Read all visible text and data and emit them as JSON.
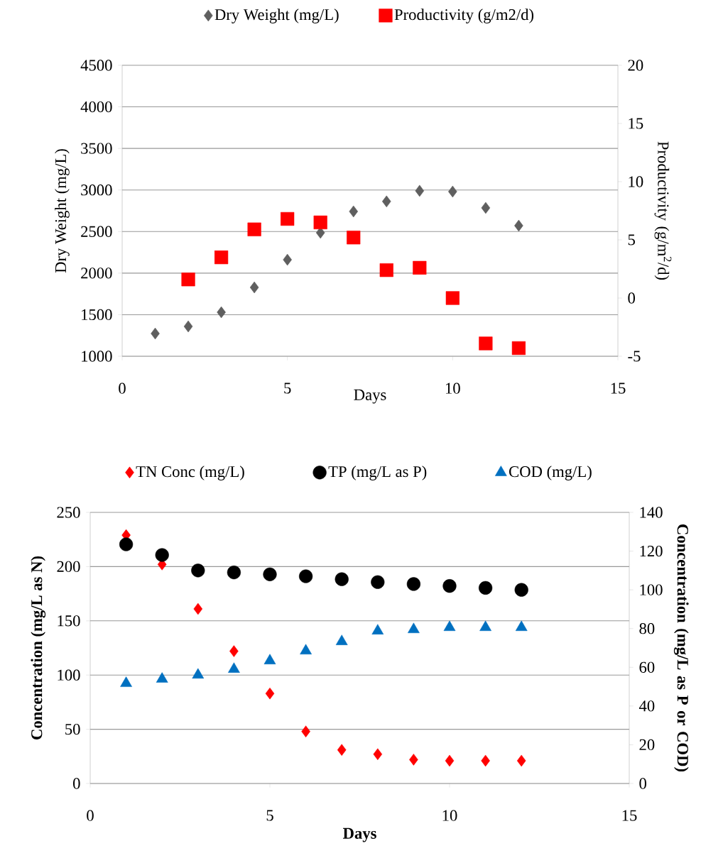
{
  "chart_data": [
    {
      "type": "scatter",
      "xlabel": "Days",
      "ylabel": "Dry Weight (mg/L)",
      "y2label": "Productivity (g/m$^{2}$/d)",
      "xlim": [
        0,
        15
      ],
      "xticks": [
        0,
        5,
        10,
        15
      ],
      "ylim": [
        1000,
        4500
      ],
      "yticks": [
        1000,
        1500,
        2000,
        2500,
        3000,
        3500,
        4000,
        4500
      ],
      "y2lim": [
        -5,
        20
      ],
      "y2ticks": [
        -5,
        0,
        5,
        10,
        15,
        20
      ],
      "grid": "y",
      "legend": "top",
      "series": [
        {
          "name": "Dry Weight (mg/L)",
          "color": "#5f5f5f",
          "marker": "diamond",
          "x": [
            1,
            2,
            3,
            4,
            5,
            6,
            7,
            8,
            9,
            10,
            11,
            12
          ],
          "values": [
            1273,
            1359,
            1529,
            1828,
            2161,
            2486,
            2742,
            2862,
            2990,
            2981,
            2785,
            2571
          ]
        },
        {
          "name": "Productivity (g/m2/d)",
          "color": "#ff0000",
          "marker": "square",
          "axis": "y2",
          "x": [
            2,
            3,
            4,
            5,
            6,
            7,
            8,
            9,
            10,
            11,
            12
          ],
          "values": [
            1.6,
            3.5,
            5.9,
            6.8,
            6.5,
            5.2,
            2.4,
            2.6,
            0,
            -3.9,
            -4.3
          ]
        }
      ]
    },
    {
      "type": "scatter",
      "xlabel": "Days",
      "ylabel": "Concentration (mg/L as N)",
      "y2label": "Concentration (mg/L as P or COD)",
      "xlim": [
        0,
        15
      ],
      "xticks": [
        0,
        5,
        10,
        15
      ],
      "ylim": [
        0,
        250
      ],
      "yticks": [
        0,
        50,
        100,
        150,
        200,
        250
      ],
      "y2lim": [
        0,
        140
      ],
      "y2ticks": [
        0,
        20,
        40,
        60,
        80,
        100,
        120,
        140
      ],
      "grid": "y",
      "legend": "top",
      "series": [
        {
          "name": "TN Conc (mg/L)",
          "color": "#ff0000",
          "marker": "diamond",
          "x": [
            1,
            2,
            3,
            4,
            5,
            6,
            7,
            8,
            9,
            10,
            11,
            12
          ],
          "values": [
            229,
            202,
            161,
            122,
            83,
            48,
            31,
            27,
            22,
            21,
            21,
            21
          ]
        },
        {
          "name": "TP (mg/L as P)",
          "color": "#000000",
          "marker": "circle",
          "axis": "y2",
          "x": [
            1,
            2,
            3,
            4,
            5,
            6,
            7,
            8,
            9,
            10,
            11,
            12
          ],
          "values": [
            123.5,
            118,
            110,
            109,
            108,
            107,
            105.5,
            104,
            103,
            102,
            101,
            100
          ]
        },
        {
          "name": "COD (mg/L)",
          "color": "#0070c0",
          "marker": "triangle",
          "axis": "y2",
          "x": [
            1,
            2,
            3,
            4,
            5,
            6,
            7,
            8,
            9,
            10,
            11,
            12
          ],
          "values": [
            51.7,
            53.9,
            56,
            59,
            63.4,
            68.5,
            73.3,
            78.8,
            79.5,
            80.6,
            80.6,
            80.6
          ]
        }
      ]
    }
  ]
}
